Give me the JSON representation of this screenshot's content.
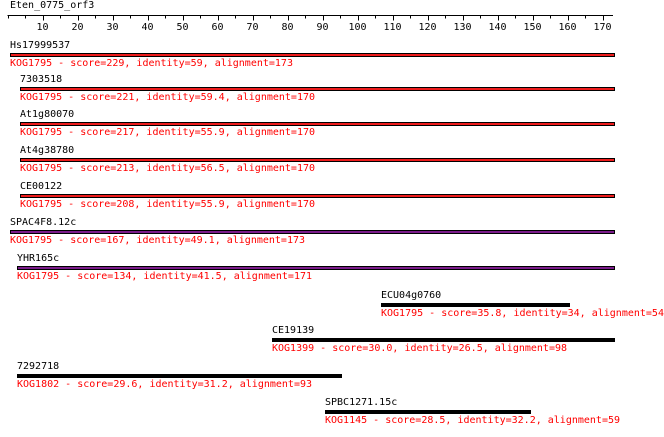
{
  "query": {
    "name": "Eten_0775_orf3",
    "length": 173,
    "ticks": [
      "10",
      "20",
      "30",
      "40",
      "50",
      "60",
      "70",
      "80",
      "90",
      "100",
      "110",
      "120",
      "130",
      "140",
      "150",
      "160",
      "170"
    ]
  },
  "hits": [
    {
      "name": "Hs17999537",
      "desc": "KOG1795 - score=229, identity=59, alignment=173",
      "start": 1,
      "end": 173,
      "color": "#ee1c1c"
    },
    {
      "name": "7303518",
      "desc": "KOG1795 - score=221, identity=59.4, alignment=170",
      "start": 4,
      "end": 173,
      "color": "#ee1c1c"
    },
    {
      "name": "At1g80070",
      "desc": "KOG1795 - score=217, identity=55.9, alignment=170",
      "start": 4,
      "end": 173,
      "color": "#ee1c1c"
    },
    {
      "name": "At4g38780",
      "desc": "KOG1795 - score=213, identity=56.5, alignment=170",
      "start": 4,
      "end": 173,
      "color": "#ee1c1c"
    },
    {
      "name": "CE00122",
      "desc": "KOG1795 - score=208, identity=55.9, alignment=170",
      "start": 4,
      "end": 173,
      "color": "#ee1c1c"
    },
    {
      "name": "SPAC4F8.12c",
      "desc": "KOG1795 - score=167, identity=49.1, alignment=173",
      "start": 1,
      "end": 173,
      "color": "#7b1c8b"
    },
    {
      "name": "YHR165c",
      "desc": "KOG1795 - score=134, identity=41.5, alignment=171",
      "start": 3,
      "end": 173,
      "color": "#7b1c8b"
    },
    {
      "name": "ECU04g0760",
      "desc": "KOG1795 - score=35.8, identity=34, alignment=54",
      "start": 107,
      "end": 160,
      "color": "#000000"
    },
    {
      "name": "CE19139",
      "desc": "KOG1399 - score=30.0, identity=26.5, alignment=98",
      "start": 76,
      "end": 173,
      "color": "#000000"
    },
    {
      "name": "7292718",
      "desc": "KOG1802 - score=29.6, identity=31.2, alignment=93",
      "start": 3,
      "end": 95,
      "color": "#000000"
    },
    {
      "name": "SPBC1271.15c",
      "desc": "KOG1145 - score=28.5, identity=32.2, alignment=59",
      "start": 91,
      "end": 149,
      "color": "#000000"
    }
  ]
}
